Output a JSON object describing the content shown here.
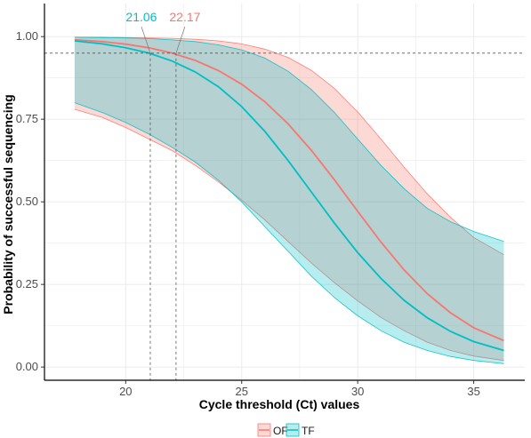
{
  "chart_data": {
    "type": "line",
    "title": "",
    "xlabel": "Cycle threshold (Ct) values",
    "ylabel": "Probability of successful sequencing",
    "xlim": [
      16.5,
      37.2
    ],
    "ylim": [
      -0.04,
      1.1
    ],
    "x_ticks": [
      20,
      25,
      30,
      35
    ],
    "x_tick_labels": [
      "20",
      "25",
      "30",
      "35"
    ],
    "y_ticks": [
      0,
      0.25,
      0.5,
      0.75,
      1
    ],
    "y_tick_labels": [
      "0.00",
      "0.25",
      "0.50",
      "0.75",
      "1.00"
    ],
    "grid": true,
    "legend_position": "bottom",
    "threshold_line_y": 0.95,
    "series": [
      {
        "name": "OF",
        "color": "#F8766D",
        "x": [
          17.8,
          19,
          20,
          21,
          22,
          23,
          24,
          25,
          26,
          27,
          28,
          29,
          30,
          31,
          32,
          33,
          34,
          35,
          36.3
        ],
        "values": [
          0.99,
          0.985,
          0.977,
          0.966,
          0.95,
          0.928,
          0.897,
          0.856,
          0.803,
          0.736,
          0.656,
          0.566,
          0.471,
          0.378,
          0.294,
          0.222,
          0.164,
          0.119,
          0.08
        ],
        "lower": [
          0.78,
          0.755,
          0.725,
          0.69,
          0.655,
          0.61,
          0.56,
          0.505,
          0.445,
          0.38,
          0.315,
          0.255,
          0.2,
          0.15,
          0.11,
          0.075,
          0.05,
          0.033,
          0.02
        ],
        "upper": [
          0.998,
          0.998,
          0.997,
          0.996,
          0.995,
          0.992,
          0.987,
          0.978,
          0.962,
          0.937,
          0.898,
          0.843,
          0.772,
          0.69,
          0.605,
          0.524,
          0.453,
          0.392,
          0.34
        ]
      },
      {
        "name": "TF",
        "color": "#00BFC4",
        "x": [
          17.8,
          19,
          20,
          21,
          22,
          23,
          24,
          25,
          26,
          27,
          28,
          29,
          30,
          31,
          32,
          33,
          34,
          35,
          36.3
        ],
        "values": [
          0.987,
          0.978,
          0.966,
          0.95,
          0.926,
          0.893,
          0.848,
          0.788,
          0.713,
          0.625,
          0.53,
          0.435,
          0.346,
          0.268,
          0.202,
          0.149,
          0.108,
          0.077,
          0.05
        ],
        "lower": [
          0.8,
          0.77,
          0.74,
          0.705,
          0.665,
          0.62,
          0.565,
          0.5,
          0.425,
          0.35,
          0.275,
          0.21,
          0.155,
          0.11,
          0.075,
          0.05,
          0.032,
          0.02,
          0.01
        ],
        "upper": [
          0.998,
          0.997,
          0.996,
          0.994,
          0.99,
          0.985,
          0.975,
          0.96,
          0.935,
          0.895,
          0.84,
          0.77,
          0.69,
          0.61,
          0.54,
          0.48,
          0.44,
          0.41,
          0.38
        ]
      }
    ],
    "annotations": [
      {
        "text": "21.06",
        "x": 21.06,
        "series": "TF",
        "color": "#00BFC4"
      },
      {
        "text": "22.17",
        "x": 22.17,
        "series": "OF",
        "color": "#F8766D"
      }
    ]
  }
}
